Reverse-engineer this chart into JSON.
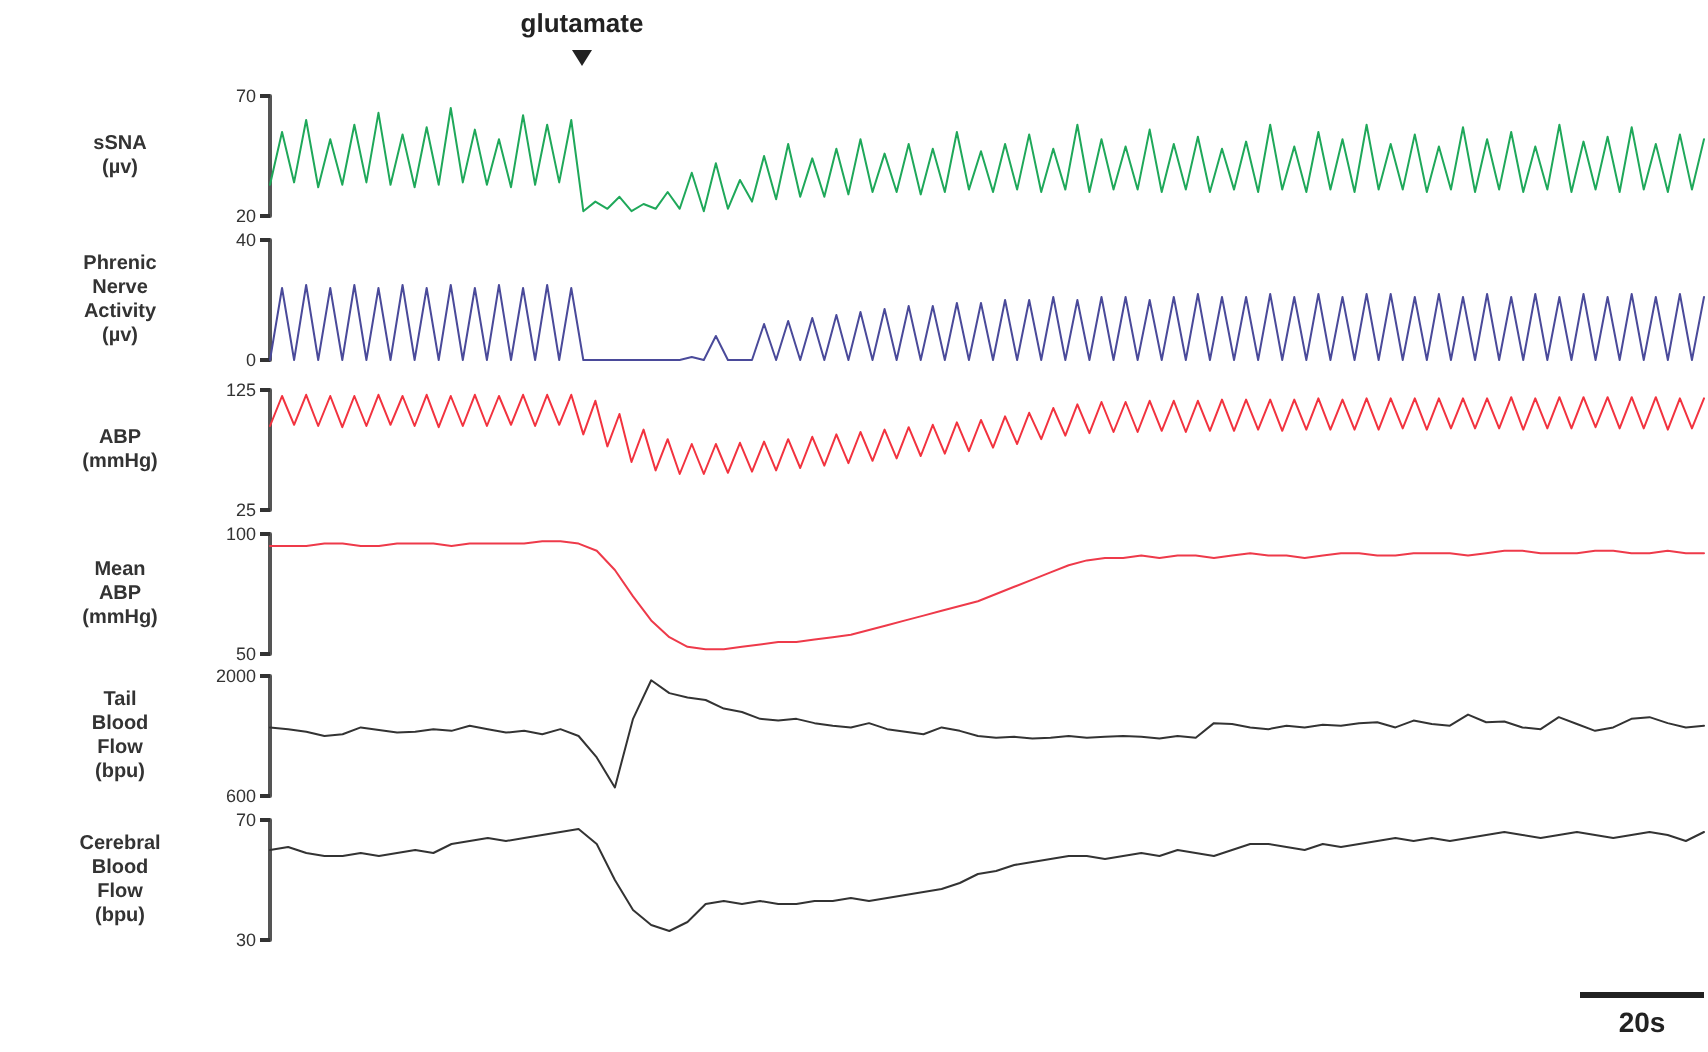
{
  "chart_data": [
    {
      "type": "line",
      "ylabel": "sSNA\n(µv)",
      "annotations": [
        "glutamate"
      ],
      "color": "#1fa85a",
      "ylim": [
        20,
        70
      ],
      "yticks": [
        20,
        70
      ],
      "tick_labels": "y",
      "line_style": "solid",
      "categories": [
        null,
        null,
        null,
        null,
        null,
        null,
        null,
        null,
        null,
        null,
        null,
        null,
        null,
        null,
        null,
        null,
        null,
        null,
        null,
        null,
        null,
        null,
        null,
        null,
        null,
        null,
        null,
        null,
        null,
        null,
        null,
        null,
        null,
        null,
        null,
        null,
        null,
        null,
        null,
        null,
        null,
        null,
        null,
        null,
        null,
        null,
        null,
        null,
        null,
        null,
        null,
        null,
        null,
        null,
        null,
        null,
        null,
        null,
        null,
        null,
        null,
        null,
        null,
        null,
        null,
        null,
        null,
        null,
        null,
        null,
        null,
        null,
        null,
        null,
        null,
        null,
        null,
        null,
        null,
        null,
        null,
        null,
        null,
        null,
        null,
        null,
        null,
        null,
        null,
        null,
        null,
        null,
        null,
        null,
        null,
        null,
        null,
        null,
        null,
        null,
        null,
        null,
        null,
        null,
        null,
        null,
        null,
        null,
        null,
        null,
        null,
        null,
        null,
        null,
        null,
        null,
        null,
        null,
        null,
        null
      ],
      "values": [
        33,
        55,
        34,
        60,
        32,
        52,
        33,
        58,
        34,
        63,
        33,
        54,
        32,
        57,
        33,
        65,
        34,
        56,
        33,
        52,
        32,
        62,
        33,
        58,
        34,
        60,
        22,
        26,
        23,
        28,
        22,
        25,
        23,
        30,
        23,
        38,
        22,
        42,
        23,
        35,
        26,
        45,
        27,
        50,
        28,
        44,
        28,
        48,
        29,
        52,
        30,
        46,
        30,
        50,
        29,
        48,
        30,
        55,
        31,
        47,
        30,
        50,
        31,
        54,
        30,
        48,
        31,
        58,
        30,
        52,
        31,
        49,
        31,
        56,
        30,
        50,
        31,
        53,
        30,
        48,
        31,
        51,
        30,
        58,
        31,
        49,
        30,
        55,
        31,
        52,
        30,
        58,
        31,
        50,
        31,
        54,
        30,
        49,
        31,
        57,
        30,
        52,
        31,
        55,
        30,
        49,
        31,
        58,
        30,
        51,
        31,
        53,
        30,
        57,
        31,
        50,
        30,
        54,
        31,
        52
      ]
    },
    {
      "type": "line",
      "ylabel": "Phrenic\nNerve\nActivity\n(µv)",
      "color": "#4a4a9a",
      "ylim": [
        0,
        40
      ],
      "yticks": [
        0,
        40
      ],
      "tick_labels": "y",
      "line_style": "solid",
      "categories": [
        null,
        null,
        null,
        null,
        null,
        null,
        null,
        null,
        null,
        null,
        null,
        null,
        null,
        null,
        null,
        null,
        null,
        null,
        null,
        null,
        null,
        null,
        null,
        null,
        null,
        null,
        null,
        null,
        null,
        null,
        null,
        null,
        null,
        null,
        null,
        null,
        null,
        null,
        null,
        null,
        null,
        null,
        null,
        null,
        null,
        null,
        null,
        null,
        null,
        null,
        null,
        null,
        null,
        null,
        null,
        null,
        null,
        null,
        null,
        null,
        null,
        null,
        null,
        null,
        null,
        null,
        null,
        null,
        null,
        null,
        null,
        null,
        null,
        null,
        null,
        null,
        null,
        null,
        null,
        null,
        null,
        null,
        null,
        null,
        null,
        null,
        null,
        null,
        null,
        null,
        null,
        null,
        null,
        null,
        null,
        null,
        null,
        null,
        null,
        null,
        null,
        null,
        null,
        null,
        null,
        null,
        null,
        null,
        null,
        null,
        null,
        null,
        null,
        null,
        null,
        null,
        null,
        null,
        null,
        null
      ],
      "values": [
        0,
        24,
        0,
        25,
        0,
        24,
        0,
        25,
        0,
        24,
        0,
        25,
        0,
        24,
        0,
        25,
        0,
        24,
        0,
        25,
        0,
        24,
        0,
        25,
        0,
        24,
        0,
        0,
        0,
        0,
        0,
        0,
        0,
        0,
        0,
        1,
        0,
        8,
        0,
        0,
        0,
        12,
        0,
        13,
        0,
        14,
        0,
        15,
        0,
        16,
        0,
        17,
        0,
        18,
        0,
        18,
        0,
        19,
        0,
        19,
        0,
        20,
        0,
        20,
        0,
        21,
        0,
        20,
        0,
        21,
        0,
        21,
        0,
        20,
        0,
        21,
        0,
        22,
        0,
        21,
        0,
        21,
        0,
        22,
        0,
        21,
        0,
        22,
        0,
        21,
        0,
        22,
        0,
        22,
        0,
        21,
        0,
        22,
        0,
        21,
        0,
        22,
        0,
        21,
        0,
        22,
        0,
        21,
        0,
        22,
        0,
        21,
        0,
        22,
        0,
        21,
        0,
        22,
        0,
        21
      ]
    },
    {
      "type": "line",
      "ylabel": "ABP\n(mmHg)",
      "color": "#f2333f",
      "ylim": [
        25,
        125
      ],
      "yticks": [
        25,
        125
      ],
      "tick_labels": "y",
      "line_style": "solid",
      "categories": [
        null,
        null,
        null,
        null,
        null,
        null,
        null,
        null,
        null,
        null,
        null,
        null,
        null,
        null,
        null,
        null,
        null,
        null,
        null,
        null,
        null,
        null,
        null,
        null,
        null,
        null,
        null,
        null,
        null,
        null,
        null,
        null,
        null,
        null,
        null,
        null,
        null,
        null,
        null,
        null,
        null,
        null,
        null,
        null,
        null,
        null,
        null,
        null,
        null,
        null,
        null,
        null,
        null,
        null,
        null,
        null,
        null,
        null,
        null,
        null,
        null,
        null,
        null,
        null,
        null,
        null,
        null,
        null,
        null,
        null,
        null,
        null,
        null,
        null,
        null,
        null,
        null,
        null,
        null,
        null,
        null,
        null,
        null,
        null,
        null,
        null,
        null,
        null,
        null,
        null,
        null,
        null,
        null,
        null,
        null,
        null,
        null,
        null,
        null,
        null,
        null,
        null,
        null,
        null,
        null,
        null,
        null,
        null,
        null,
        null,
        null,
        null,
        null,
        null,
        null,
        null,
        null,
        null,
        null,
        null
      ],
      "values": [
        95,
        120,
        96,
        121,
        95,
        120,
        94,
        120,
        95,
        121,
        96,
        120,
        95,
        121,
        94,
        120,
        95,
        121,
        95,
        120,
        96,
        121,
        95,
        121,
        96,
        121,
        88,
        116,
        78,
        105,
        65,
        92,
        58,
        84,
        55,
        80,
        55,
        80,
        56,
        81,
        57,
        82,
        58,
        84,
        60,
        86,
        62,
        88,
        64,
        90,
        66,
        92,
        68,
        94,
        70,
        96,
        72,
        98,
        74,
        100,
        77,
        103,
        80,
        106,
        84,
        110,
        87,
        113,
        89,
        115,
        90,
        115,
        90,
        116,
        91,
        116,
        90,
        116,
        91,
        117,
        91,
        117,
        92,
        117,
        91,
        117,
        92,
        118,
        92,
        117,
        92,
        118,
        92,
        118,
        93,
        118,
        92,
        118,
        93,
        118,
        93,
        118,
        93,
        119,
        92,
        118,
        93,
        119,
        93,
        119,
        94,
        119,
        93,
        119,
        93,
        119,
        92,
        118,
        93,
        118
      ]
    },
    {
      "type": "line",
      "ylabel": "Mean\nABP\n(mmHg)",
      "color": "#ee3a4a",
      "ylim": [
        50,
        100
      ],
      "yticks": [
        50,
        100
      ],
      "tick_labels": "y",
      "line_style": "solid",
      "categories": [
        null,
        null,
        null,
        null,
        null,
        null,
        null,
        null,
        null,
        null,
        null,
        null,
        null,
        null,
        null,
        null,
        null,
        null,
        null,
        null,
        null,
        null,
        null,
        null,
        null,
        null,
        null,
        null,
        null,
        null,
        null,
        null,
        null,
        null,
        null,
        null,
        null,
        null,
        null,
        null,
        null,
        null,
        null,
        null,
        null,
        null,
        null,
        null,
        null,
        null,
        null,
        null,
        null,
        null,
        null,
        null,
        null,
        null,
        null,
        null,
        null,
        null,
        null,
        null,
        null,
        null,
        null,
        null,
        null,
        null,
        null,
        null,
        null,
        null,
        null,
        null,
        null,
        null,
        null,
        null
      ],
      "values": [
        95,
        95,
        95,
        96,
        96,
        95,
        95,
        96,
        96,
        96,
        95,
        96,
        96,
        96,
        96,
        97,
        97,
        96,
        93,
        85,
        74,
        64,
        57,
        53,
        52,
        52,
        53,
        54,
        55,
        55,
        56,
        57,
        58,
        60,
        62,
        64,
        66,
        68,
        70,
        72,
        75,
        78,
        81,
        84,
        87,
        89,
        90,
        90,
        91,
        90,
        91,
        91,
        90,
        91,
        92,
        91,
        91,
        90,
        91,
        92,
        92,
        91,
        91,
        92,
        92,
        92,
        91,
        92,
        93,
        93,
        92,
        92,
        92,
        93,
        93,
        92,
        92,
        93,
        92,
        92
      ]
    },
    {
      "type": "line",
      "ylabel": "Tail\nBlood\nFlow\n(bpu)",
      "color": "#333333",
      "ylim": [
        600,
        2000
      ],
      "yticks": [
        600,
        2000
      ],
      "tick_labels": "y",
      "line_style": "solid",
      "categories": [
        null,
        null,
        null,
        null,
        null,
        null,
        null,
        null,
        null,
        null,
        null,
        null,
        null,
        null,
        null,
        null,
        null,
        null,
        null,
        null,
        null,
        null,
        null,
        null,
        null,
        null,
        null,
        null,
        null,
        null,
        null,
        null,
        null,
        null,
        null,
        null,
        null,
        null,
        null,
        null,
        null,
        null,
        null,
        null,
        null,
        null,
        null,
        null,
        null,
        null,
        null,
        null,
        null,
        null,
        null,
        null,
        null,
        null,
        null,
        null,
        null,
        null,
        null,
        null,
        null,
        null,
        null,
        null,
        null,
        null,
        null,
        null,
        null,
        null,
        null,
        null,
        null,
        null,
        null,
        null
      ],
      "values": [
        1400,
        1380,
        1350,
        1300,
        1320,
        1400,
        1370,
        1340,
        1350,
        1380,
        1360,
        1420,
        1380,
        1340,
        1360,
        1320,
        1380,
        1300,
        1050,
        700,
        1500,
        1950,
        1800,
        1750,
        1720,
        1620,
        1580,
        1500,
        1480,
        1500,
        1450,
        1420,
        1400,
        1450,
        1380,
        1350,
        1320,
        1400,
        1360,
        1300,
        1280,
        1290,
        1270,
        1280,
        1300,
        1280,
        1290,
        1300,
        1290,
        1270,
        1300,
        1280,
        1450,
        1440,
        1400,
        1380,
        1420,
        1400,
        1430,
        1420,
        1450,
        1460,
        1400,
        1480,
        1440,
        1420,
        1550,
        1460,
        1470,
        1400,
        1380,
        1520,
        1440,
        1360,
        1400,
        1500,
        1520,
        1450,
        1400,
        1420
      ]
    },
    {
      "type": "line",
      "ylabel": "Cerebral\nBlood\nFlow\n(bpu)",
      "annotations": [
        "20s"
      ],
      "color": "#333333",
      "ylim": [
        30,
        70
      ],
      "yticks": [
        30,
        70
      ],
      "tick_labels": "y",
      "line_style": "solid",
      "categories": [
        null,
        null,
        null,
        null,
        null,
        null,
        null,
        null,
        null,
        null,
        null,
        null,
        null,
        null,
        null,
        null,
        null,
        null,
        null,
        null,
        null,
        null,
        null,
        null,
        null,
        null,
        null,
        null,
        null,
        null,
        null,
        null,
        null,
        null,
        null,
        null,
        null,
        null,
        null,
        null,
        null,
        null,
        null,
        null,
        null,
        null,
        null,
        null,
        null,
        null,
        null,
        null,
        null,
        null,
        null,
        null,
        null,
        null,
        null,
        null,
        null,
        null,
        null,
        null,
        null,
        null,
        null,
        null,
        null,
        null,
        null,
        null,
        null,
        null,
        null,
        null,
        null,
        null,
        null,
        null
      ],
      "values": [
        60,
        61,
        59,
        58,
        58,
        59,
        58,
        59,
        60,
        59,
        62,
        63,
        64,
        63,
        64,
        65,
        66,
        67,
        62,
        50,
        40,
        35,
        33,
        36,
        42,
        43,
        42,
        43,
        42,
        42,
        43,
        43,
        44,
        43,
        44,
        45,
        46,
        47,
        49,
        52,
        53,
        55,
        56,
        57,
        58,
        58,
        57,
        58,
        59,
        58,
        60,
        59,
        58,
        60,
        62,
        62,
        61,
        60,
        62,
        61,
        62,
        63,
        64,
        63,
        64,
        63,
        64,
        65,
        66,
        65,
        64,
        65,
        66,
        65,
        64,
        65,
        66,
        65,
        63,
        66
      ]
    }
  ]
}
